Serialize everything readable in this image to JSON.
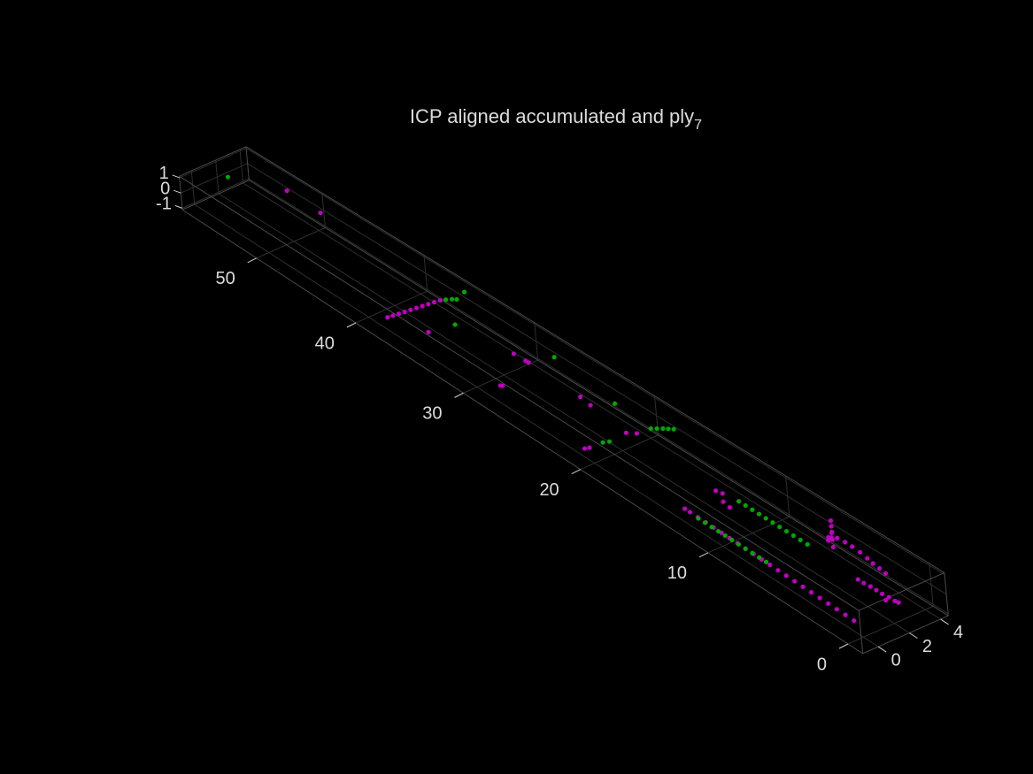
{
  "chart_data": {
    "type": "scatter3",
    "title": {
      "text": "ICP aligned accumulated and ply",
      "subscript": "7"
    },
    "xlim": [
      -1,
      58
    ],
    "ylim": [
      -1,
      4.5
    ],
    "zlim": [
      -1.1,
      1.1
    ],
    "xticks": [
      0,
      10,
      20,
      30,
      40,
      50
    ],
    "yticks": [
      0,
      2,
      4
    ],
    "zticks": [
      -1,
      0,
      1
    ],
    "grid": true,
    "background": "#000000",
    "series": [
      {
        "color": "#bf00bf",
        "x": [
          -0.1,
          0.5,
          1.1,
          1.7,
          2.3,
          2.9,
          3.5,
          4.1,
          4.7,
          5.3,
          5.9,
          6.5,
          7.1,
          7.7,
          8.3,
          8.9,
          9.5,
          10.1,
          10.7,
          11.3,
          11.9,
          12.3,
          12.6,
          12.2,
          11.6,
          11.0,
          5.8,
          6.0,
          6.2,
          5.9,
          6.0,
          6.0,
          6.0,
          6.0,
          6.0,
          5.7,
          5.2,
          4.7,
          4.1,
          3.5,
          3.0,
          2.5,
          2.0,
          2.4,
          2.0,
          1.6,
          1.2,
          0.8,
          0.4,
          0.0,
          -0.2,
          0.3,
          19.7,
          19.3,
          19.9,
          19.8,
          23.0,
          24.0,
          27.7,
          27.6,
          29.8,
          28.55,
          28.8,
          34.76,
          37.6,
          37.54,
          37.48,
          37.42,
          37.36,
          37.3,
          37.24,
          37.18,
          37.12,
          37.05,
          53.5,
          49.9
        ],
        "y": [
          -0.58,
          -0.57,
          -0.56,
          -0.55,
          -0.54,
          -0.53,
          -0.52,
          -0.51,
          -0.5,
          -0.49,
          -0.48,
          -0.47,
          -0.46,
          -0.45,
          -0.44,
          -0.43,
          -0.42,
          -0.41,
          -0.4,
          -0.4,
          -0.39,
          -0.39,
          2.0,
          2.1,
          1.6,
          1.5,
          3.3,
          3.5,
          3.9,
          3.6,
          3.75,
          3.75,
          3.75,
          3.75,
          3.75,
          3.8,
          3.85,
          3.85,
          3.8,
          3.7,
          3.6,
          3.55,
          3.47,
          2.05,
          2.05,
          2.1,
          2.1,
          2.1,
          2.15,
          2.15,
          2.2,
          1.85,
          2.1,
          2.5,
          -0.66,
          -0.4,
          2.44,
          2.58,
          -0.07,
          0.0,
          2.67,
          2.71,
          2.7,
          0.44,
          -0.36,
          0.0,
          0.4,
          0.8,
          1.2,
          1.6,
          2.0,
          2.4,
          2.8,
          3.2,
          4.27,
          4.17
        ],
        "z": [
          0,
          0,
          0,
          0,
          0,
          0,
          0,
          0,
          0,
          0,
          0,
          0,
          0,
          0,
          0,
          0,
          0,
          0,
          0,
          0,
          0,
          0,
          0,
          0,
          0,
          0,
          0,
          0,
          0,
          0,
          -0.6,
          -0.2,
          0.2,
          0.5,
          0.8,
          0,
          0,
          0,
          0,
          0,
          0,
          0,
          0,
          0,
          0,
          0,
          0,
          0,
          0,
          0,
          0,
          0,
          0,
          0,
          0,
          0,
          0,
          0,
          0,
          0,
          0,
          0,
          0,
          0,
          0,
          0,
          0,
          0,
          0,
          0,
          0,
          0,
          0,
          0,
          0,
          0
        ]
      },
      {
        "color": "#00a800",
        "x": [
          6.2,
          6.7,
          7.2,
          7.7,
          8.2,
          8.7,
          9.2,
          9.7,
          10.2,
          10.7,
          11.2,
          6.15,
          6.65,
          7.15,
          7.65,
          8.15,
          8.65,
          9.15,
          9.65,
          10.15,
          10.65,
          11.15,
          19.2,
          19.0,
          18.8,
          18.6,
          18.4,
          19.6,
          19.75,
          22.3,
          28.07,
          34.4,
          36.9,
          36.7,
          36.5,
          36.1,
          57.5
        ],
        "y": [
          -0.45,
          -0.45,
          -0.45,
          -0.45,
          -0.45,
          -0.45,
          -0.45,
          -0.45,
          -0.45,
          -0.45,
          -0.45,
          2.25,
          2.25,
          2.25,
          2.25,
          2.25,
          2.25,
          2.25,
          2.25,
          2.25,
          2.25,
          2.25,
          3.4,
          3.65,
          3.9,
          4.1,
          4.3,
          0.83,
          0.5,
          3.57,
          4.18,
          2.14,
          3.5,
          3.8,
          4.0,
          4.3,
          2.5
        ],
        "z": [
          0,
          0,
          0,
          0,
          0,
          0,
          0,
          0,
          0,
          0,
          0,
          0,
          0,
          0,
          0,
          0,
          0,
          0,
          0,
          0,
          0,
          0,
          0,
          0,
          0,
          0,
          0,
          0,
          0,
          0,
          0,
          0,
          0,
          0,
          0,
          0.5,
          0
        ]
      }
    ]
  }
}
